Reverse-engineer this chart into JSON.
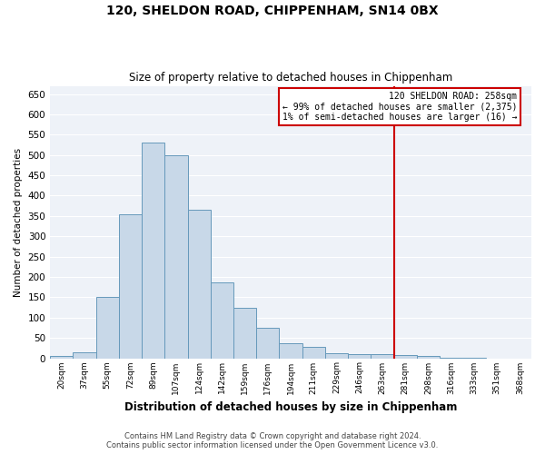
{
  "title": "120, SHELDON ROAD, CHIPPENHAM, SN14 0BX",
  "subtitle": "Size of property relative to detached houses in Chippenham",
  "xlabel": "Distribution of detached houses by size in Chippenham",
  "ylabel": "Number of detached properties",
  "bar_labels": [
    "20sqm",
    "37sqm",
    "55sqm",
    "72sqm",
    "89sqm",
    "107sqm",
    "124sqm",
    "142sqm",
    "159sqm",
    "176sqm",
    "194sqm",
    "211sqm",
    "229sqm",
    "246sqm",
    "263sqm",
    "281sqm",
    "298sqm",
    "316sqm",
    "333sqm",
    "351sqm",
    "368sqm"
  ],
  "bar_values": [
    5,
    15,
    150,
    353,
    530,
    500,
    365,
    187,
    125,
    75,
    38,
    27,
    12,
    10,
    10,
    8,
    5,
    2,
    1,
    0,
    0
  ],
  "bar_color": "#c8d8e8",
  "bar_edge_color": "#6699bb",
  "vline_index": 14,
  "vline_color": "#cc0000",
  "annotation_title": "120 SHELDON ROAD: 258sqm",
  "annotation_line1": "← 99% of detached houses are smaller (2,375)",
  "annotation_line2": "1% of semi-detached houses are larger (16) →",
  "annotation_box_color": "#cc0000",
  "ylim": [
    0,
    670
  ],
  "yticks": [
    0,
    50,
    100,
    150,
    200,
    250,
    300,
    350,
    400,
    450,
    500,
    550,
    600,
    650
  ],
  "bg_color": "#eef2f8",
  "grid_color": "#ffffff",
  "footer_line1": "Contains HM Land Registry data © Crown copyright and database right 2024.",
  "footer_line2": "Contains public sector information licensed under the Open Government Licence v3.0."
}
